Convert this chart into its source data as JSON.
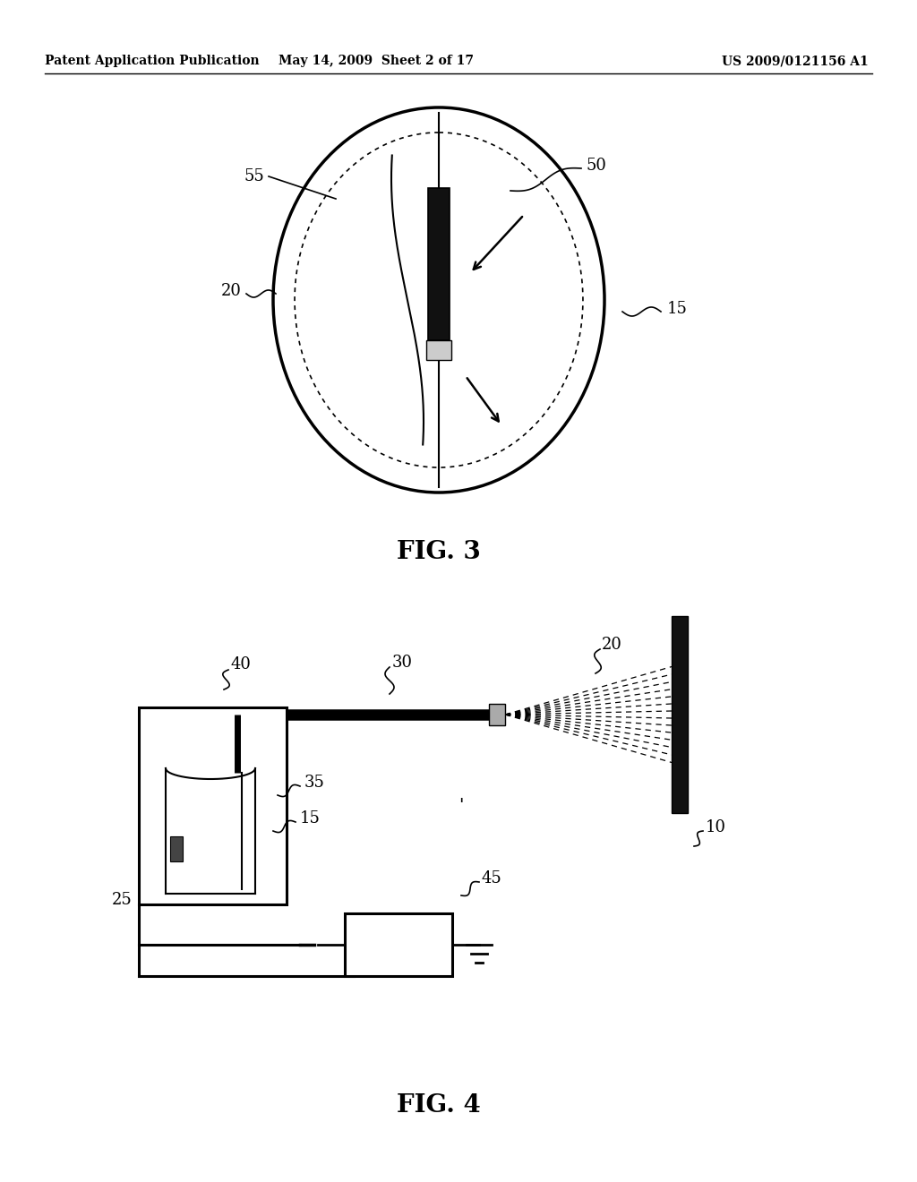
{
  "header_left": "Patent Application Publication",
  "header_mid": "May 14, 2009  Sheet 2 of 17",
  "header_right": "US 2009/0121156 A1",
  "fig3_label": "FIG. 3",
  "fig4_label": "FIG. 4",
  "bg_color": "#ffffff"
}
